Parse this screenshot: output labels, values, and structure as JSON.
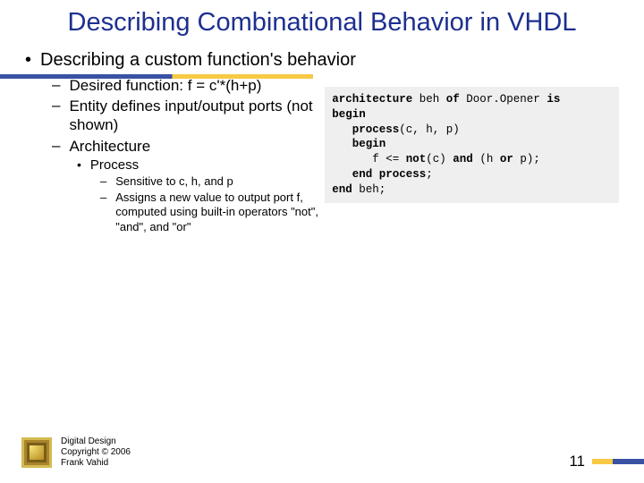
{
  "title": "Describing Combinational Behavior in VHDL",
  "underline": {
    "color_left": "#3952a4",
    "color_right": "#f7c945"
  },
  "main_bullet": "Describing a custom function's behavior",
  "sub_bullets": [
    "Desired function: f = c'*(h+p)",
    "Entity defines input/output ports (not shown)",
    "Architecture"
  ],
  "sub3_bullet": "Process",
  "sub4_bullets": [
    "Sensitive to c, h, and p",
    "Assigns a new value to output port f, computed using built-in operators \"not\", \"and\", and \"or\""
  ],
  "code": {
    "lines": [
      {
        "indent": 0,
        "parts": [
          [
            "b",
            "architecture"
          ],
          [
            "n",
            " beh "
          ],
          [
            "b",
            "of"
          ],
          [
            "n",
            " Door.Opener "
          ],
          [
            "b",
            "is"
          ]
        ]
      },
      {
        "indent": 0,
        "parts": [
          [
            "b",
            "begin"
          ]
        ]
      },
      {
        "indent": 1,
        "parts": [
          [
            "b",
            "process"
          ],
          [
            "n",
            "(c, h, p)"
          ]
        ]
      },
      {
        "indent": 1,
        "parts": [
          [
            "b",
            "begin"
          ]
        ]
      },
      {
        "indent": 2,
        "parts": [
          [
            "n",
            "f <= "
          ],
          [
            "b",
            "not"
          ],
          [
            "n",
            "(c) "
          ],
          [
            "b",
            "and"
          ],
          [
            "n",
            " (h "
          ],
          [
            "b",
            "or"
          ],
          [
            "n",
            " p);"
          ]
        ]
      },
      {
        "indent": 1,
        "parts": [
          [
            "b",
            "end process"
          ],
          [
            "n",
            ";"
          ]
        ]
      },
      {
        "indent": 0,
        "parts": [
          [
            "b",
            "end"
          ],
          [
            "n",
            " beh;"
          ]
        ]
      }
    ],
    "background": "#efefef",
    "font_family": "Courier New"
  },
  "footer": {
    "line1": "Digital Design",
    "line2": "Copyright © 2006",
    "line3": "Frank Vahid"
  },
  "page_number": "11"
}
